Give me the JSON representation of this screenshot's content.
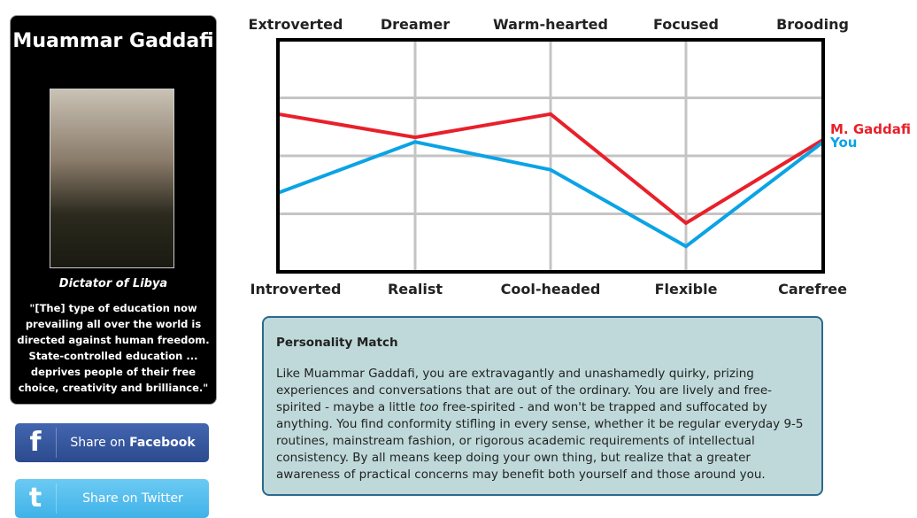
{
  "profile": {
    "name": "Muammar Gaddafi",
    "title": "Dictator of Libya",
    "quote": "\"[The] type of education now prevailing all over the world is directed against human freedom. State-controlled education ... deprives people of their free choice, creativity and brilliance.\""
  },
  "share": {
    "facebook_prefix": "Share on ",
    "facebook_brand": "Facebook",
    "twitter": "Share on Twitter"
  },
  "chart_data": {
    "type": "line",
    "top_labels": [
      "Extroverted",
      "Dreamer",
      "Warm-hearted",
      "Focused",
      "Brooding"
    ],
    "bottom_labels": [
      "Introverted",
      "Realist",
      "Cool-headed",
      "Flexible",
      "Carefree"
    ],
    "ylim": [
      0,
      100
    ],
    "grid": true,
    "series": [
      {
        "name": "M. Gaddafi",
        "color": "#e8202a",
        "values": [
          68,
          58,
          68,
          21,
          57
        ]
      },
      {
        "name": "You",
        "color": "#0aa3e6",
        "values": [
          34,
          56,
          44,
          11,
          56
        ]
      }
    ]
  },
  "match": {
    "heading": "Personality Match",
    "p1": "Like Muammar Gaddafi, you are extravagantly and unashamedly quirky, prizing experiences and conversations that are out of the ordinary. You are lively and free-spirited - maybe a little ",
    "em": "too",
    "p2": " free-spirited - and won't be trapped and suffocated by anything. You find conformity stifling in every sense, whether it be regular everyday 9-5 routines, mainstream fashion, or rigorous academic requirements of intellectual consistency. By all means keep doing your own thing, but realize that a greater awareness of practical concerns may benefit both yourself and those around you."
  }
}
